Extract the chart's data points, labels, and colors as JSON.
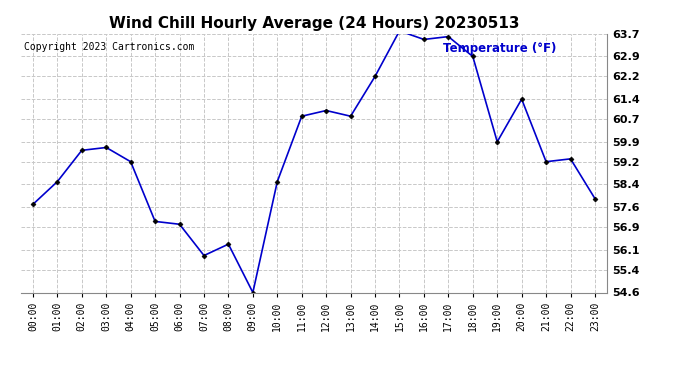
{
  "title": "Wind Chill Hourly Average (24 Hours) 20230513",
  "ylabel": "Temperature (°F)",
  "copyright_text": "Copyright 2023 Cartronics.com",
  "hours": [
    "00:00",
    "01:00",
    "02:00",
    "03:00",
    "04:00",
    "05:00",
    "06:00",
    "07:00",
    "08:00",
    "09:00",
    "10:00",
    "11:00",
    "12:00",
    "13:00",
    "14:00",
    "15:00",
    "16:00",
    "17:00",
    "18:00",
    "19:00",
    "20:00",
    "21:00",
    "22:00",
    "23:00"
  ],
  "values": [
    57.7,
    58.5,
    59.6,
    59.7,
    59.2,
    57.1,
    57.0,
    55.9,
    56.3,
    54.6,
    58.5,
    60.8,
    61.0,
    60.8,
    62.2,
    63.8,
    63.5,
    63.6,
    62.9,
    59.9,
    61.4,
    59.2,
    59.3,
    57.9
  ],
  "line_color": "#0000cc",
  "marker_color": "#000000",
  "grid_color": "#c8c8c8",
  "background_color": "#ffffff",
  "title_color": "#000000",
  "ylabel_color": "#0000cc",
  "copyright_color": "#000000",
  "ylim": [
    54.6,
    63.7
  ],
  "yticks": [
    54.6,
    55.4,
    56.1,
    56.9,
    57.6,
    58.4,
    59.2,
    59.9,
    60.7,
    61.4,
    62.2,
    62.9,
    63.7
  ]
}
